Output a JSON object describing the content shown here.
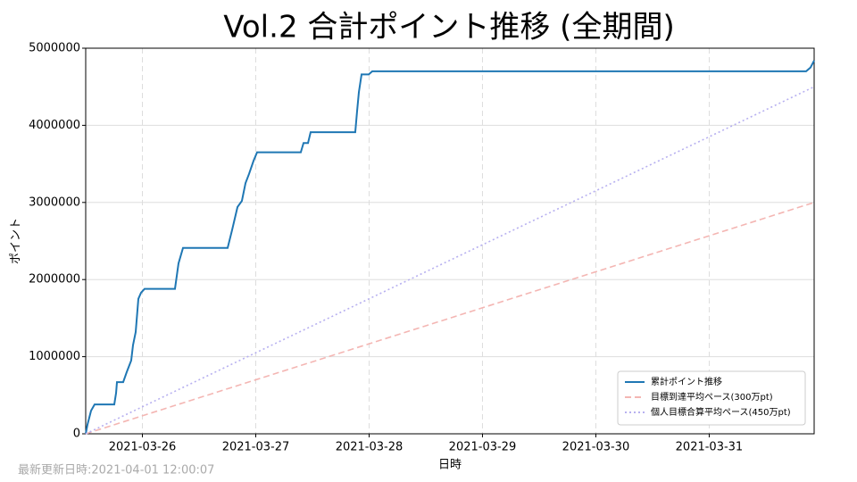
{
  "chart_data": {
    "type": "line",
    "title": "Vol.2 合計ポイント推移 (全期間)",
    "x_label": "日時",
    "y_label": "ポイント",
    "footer": "最新更新日時:2021-04-01 12:00:07",
    "xlim": [
      "2021-03-25 12:00",
      "2021-03-31 22:13"
    ],
    "xticks": [
      "2021-03-26",
      "2021-03-27",
      "2021-03-28",
      "2021-03-29",
      "2021-03-30",
      "2021-03-31"
    ],
    "ylim": [
      0,
      5000000
    ],
    "yticks": [
      0,
      1000000,
      2000000,
      3000000,
      4000000,
      5000000
    ],
    "grid": true,
    "legend": "lower right",
    "series": [
      {
        "name": "累計ポイント推移",
        "color": "#1f77b4",
        "style": "solid",
        "x": [
          "2021-03-25 12:00",
          "2021-03-25 12:23",
          "2021-03-25 13:08",
          "2021-03-25 13:53",
          "2021-03-25 18:03",
          "2021-03-25 18:26",
          "2021-03-25 18:37",
          "2021-03-25 19:56",
          "2021-03-25 20:41",
          "2021-03-25 21:38",
          "2021-03-25 22:01",
          "2021-03-25 22:35",
          "2021-03-25 23:09",
          "2021-03-25 23:43",
          "2021-03-26 00:28",
          "2021-03-26 06:54",
          "2021-03-26 07:39",
          "2021-03-26 08:36",
          "2021-03-26 18:03",
          "2021-03-26 18:59",
          "2021-03-26 20:08",
          "2021-03-26 21:04",
          "2021-03-26 21:50",
          "2021-03-26 22:35",
          "2021-03-26 23:32",
          "2021-03-27 00:17",
          "2021-03-27 09:32",
          "2021-03-27 10:07",
          "2021-03-27 11:04",
          "2021-03-27 11:37",
          "2021-03-27 21:04",
          "2021-03-27 21:27",
          "2021-03-27 21:50",
          "2021-03-27 22:24",
          "2021-03-27 23:55",
          "2021-03-28 00:40",
          "2021-03-31 20:31",
          "2021-03-31 21:27",
          "2021-03-31 22:13"
        ],
        "values": [
          0,
          120000,
          300000,
          380000,
          380000,
          530000,
          670000,
          670000,
          800000,
          950000,
          1150000,
          1320000,
          1750000,
          1830000,
          1880000,
          1880000,
          2210000,
          2410000,
          2410000,
          2640000,
          2940000,
          3020000,
          3250000,
          3370000,
          3540000,
          3650000,
          3650000,
          3770000,
          3770000,
          3910000,
          3910000,
          4180000,
          4430000,
          4660000,
          4660000,
          4700000,
          4700000,
          4750000,
          4840000
        ]
      },
      {
        "name": "目標到達平均ペース(300万pt)",
        "color": "#f4b6b3",
        "style": "dashed",
        "x": [
          "2021-03-25 12:00",
          "2021-03-31 22:13"
        ],
        "values": [
          0,
          3000000
        ]
      },
      {
        "name": "個人目標合算平均ペース(450万pt)",
        "color": "#b7b0f0",
        "style": "dotted",
        "x": [
          "2021-03-25 12:00",
          "2021-03-31 22:13"
        ],
        "values": [
          0,
          4500000
        ]
      }
    ]
  }
}
